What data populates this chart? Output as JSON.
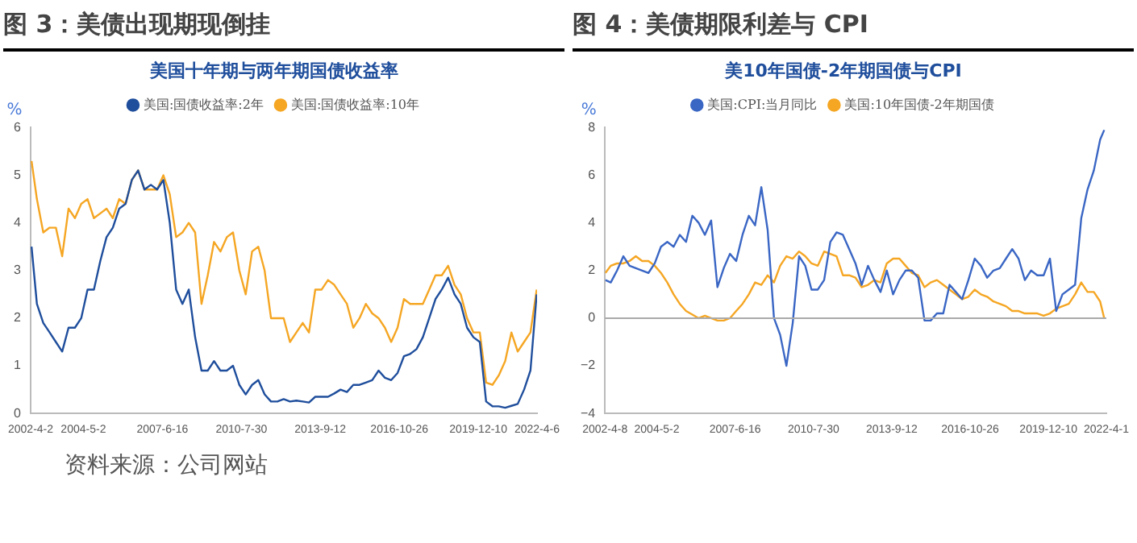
{
  "chart_data": [
    {
      "type": "line",
      "title": "图 3：美债出现期现倒挂",
      "subtitle": "美国十年期与两年期国债收益率",
      "ylabel": "%",
      "legend": "top",
      "marker": "none",
      "line_style": "solid",
      "grid": false,
      "x": [
        "2002-04-15",
        "2002-07",
        "2002-10",
        "2003-01",
        "2003-04",
        "2003-07",
        "2003-10",
        "2004-01",
        "2004-04",
        "2004-07",
        "2004-10",
        "2005-01",
        "2005-04",
        "2005-07",
        "2005-10",
        "2006-01",
        "2006-04",
        "2006-07",
        "2006-10",
        "2007-01",
        "2007-04",
        "2007-07",
        "2007-10",
        "2008-01",
        "2008-04",
        "2008-07",
        "2008-10",
        "2009-01",
        "2009-04",
        "2009-07",
        "2009-10",
        "2010-01",
        "2010-04",
        "2010-07",
        "2010-10",
        "2011-01",
        "2011-04",
        "2011-07",
        "2011-10",
        "2012-01",
        "2012-04",
        "2012-07",
        "2012-10",
        "2013-01",
        "2013-04",
        "2013-07",
        "2013-10",
        "2014-01",
        "2014-04",
        "2014-07",
        "2014-10",
        "2015-01",
        "2015-04",
        "2015-07",
        "2015-10",
        "2016-01",
        "2016-04",
        "2016-07",
        "2016-10",
        "2017-01",
        "2017-04",
        "2017-07",
        "2017-10",
        "2018-01",
        "2018-04",
        "2018-07",
        "2018-10",
        "2019-01",
        "2019-04",
        "2019-07",
        "2019-10",
        "2020-01",
        "2020-04",
        "2020-07",
        "2020-10",
        "2021-01",
        "2021-04",
        "2021-07",
        "2021-10",
        "2022-01",
        "2022-04"
      ],
      "xlim": [
        "2002-04-02",
        "2022-04-06"
      ],
      "xticks": [
        {
          "value": "2002-04-02",
          "label": "2002-4-2"
        },
        {
          "value": "2004-05-02",
          "label": "2004-5-2"
        },
        {
          "value": "2007-06-16",
          "label": "2007-6-16"
        },
        {
          "value": "2010-07-30",
          "label": "2010-7-30"
        },
        {
          "value": "2013-09-12",
          "label": "2013-9-12"
        },
        {
          "value": "2016-10-26",
          "label": "2016-10-26"
        },
        {
          "value": "2019-12-10",
          "label": "2019-12-10"
        },
        {
          "value": "2022-04-06",
          "label": "2022-4-6"
        }
      ],
      "ylim": [
        0,
        6
      ],
      "yticks": [
        0,
        1,
        2,
        3,
        4,
        5,
        6
      ],
      "series": [
        {
          "name": "美国:国债收益率:2年",
          "color": "#1f4e9c",
          "values": [
            3.5,
            2.3,
            1.9,
            1.7,
            1.5,
            1.3,
            1.8,
            1.8,
            2.0,
            2.6,
            2.6,
            3.2,
            3.7,
            3.9,
            4.3,
            4.4,
            4.9,
            5.1,
            4.7,
            4.8,
            4.7,
            4.9,
            4.0,
            2.6,
            2.3,
            2.6,
            1.6,
            0.9,
            0.9,
            1.1,
            0.9,
            0.9,
            1.0,
            0.6,
            0.4,
            0.6,
            0.7,
            0.4,
            0.25,
            0.25,
            0.3,
            0.25,
            0.27,
            0.25,
            0.23,
            0.35,
            0.35,
            0.35,
            0.42,
            0.5,
            0.45,
            0.6,
            0.6,
            0.65,
            0.7,
            0.9,
            0.75,
            0.7,
            0.85,
            1.2,
            1.25,
            1.35,
            1.6,
            2.0,
            2.4,
            2.6,
            2.85,
            2.5,
            2.3,
            1.8,
            1.6,
            1.5,
            0.25,
            0.15,
            0.15,
            0.12,
            0.16,
            0.2,
            0.5,
            0.9,
            2.5
          ]
        },
        {
          "name": "美国:国债收益率:10年",
          "color": "#f5a623",
          "values": [
            5.3,
            4.5,
            3.8,
            3.9,
            3.9,
            3.3,
            4.3,
            4.1,
            4.4,
            4.5,
            4.1,
            4.2,
            4.3,
            4.1,
            4.5,
            4.4,
            4.9,
            5.1,
            4.7,
            4.7,
            4.7,
            5.0,
            4.6,
            3.7,
            3.8,
            4.0,
            3.8,
            2.3,
            2.9,
            3.6,
            3.4,
            3.7,
            3.8,
            3.0,
            2.5,
            3.4,
            3.5,
            3.0,
            2.0,
            2.0,
            2.0,
            1.5,
            1.7,
            1.9,
            1.7,
            2.6,
            2.6,
            2.8,
            2.7,
            2.5,
            2.3,
            1.8,
            2.0,
            2.3,
            2.1,
            2.0,
            1.8,
            1.5,
            1.8,
            2.4,
            2.3,
            2.3,
            2.3,
            2.6,
            2.9,
            2.9,
            3.1,
            2.7,
            2.5,
            2.0,
            1.7,
            1.7,
            0.65,
            0.6,
            0.8,
            1.1,
            1.7,
            1.3,
            1.5,
            1.7,
            2.6
          ]
        }
      ],
      "annotations": [
        "资料来源：公司网站"
      ]
    },
    {
      "type": "line",
      "title": "图 4：美债期限利差与 CPI",
      "subtitle": "美10年国债-2年期国债与CPI",
      "ylabel": "%",
      "legend": "top",
      "marker": "none",
      "line_style": "solid",
      "grid": false,
      "x": [
        "2002-04-15",
        "2002-07",
        "2002-10",
        "2003-01",
        "2003-04",
        "2003-07",
        "2003-10",
        "2004-01",
        "2004-04",
        "2004-07",
        "2004-10",
        "2005-01",
        "2005-04",
        "2005-07",
        "2005-10",
        "2006-01",
        "2006-04",
        "2006-07",
        "2006-10",
        "2007-01",
        "2007-04",
        "2007-07",
        "2007-10",
        "2008-01",
        "2008-04",
        "2008-07",
        "2008-10",
        "2009-01",
        "2009-04",
        "2009-07",
        "2009-10",
        "2010-01",
        "2010-04",
        "2010-07",
        "2010-10",
        "2011-01",
        "2011-04",
        "2011-07",
        "2011-10",
        "2012-01",
        "2012-04",
        "2012-07",
        "2012-10",
        "2013-01",
        "2013-04",
        "2013-07",
        "2013-10",
        "2014-01",
        "2014-04",
        "2014-07",
        "2014-10",
        "2015-01",
        "2015-04",
        "2015-07",
        "2015-10",
        "2016-01",
        "2016-04",
        "2016-07",
        "2016-10",
        "2017-01",
        "2017-04",
        "2017-07",
        "2017-10",
        "2018-01",
        "2018-04",
        "2018-07",
        "2018-10",
        "2019-01",
        "2019-04",
        "2019-07",
        "2019-10",
        "2020-01",
        "2020-04",
        "2020-07",
        "2020-10",
        "2021-01",
        "2021-04",
        "2021-07",
        "2021-10",
        "2022-01",
        "2022-03"
      ],
      "xlim": [
        "2002-04-08",
        "2022-04-01"
      ],
      "xticks": [
        {
          "value": "2002-04-08",
          "label": "2002-4-8"
        },
        {
          "value": "2004-05-02",
          "label": "2004-5-2"
        },
        {
          "value": "2007-06-16",
          "label": "2007-6-16"
        },
        {
          "value": "2010-07-30",
          "label": "2010-7-30"
        },
        {
          "value": "2013-09-12",
          "label": "2013-9-12"
        },
        {
          "value": "2016-10-26",
          "label": "2016-10-26"
        },
        {
          "value": "2019-12-10",
          "label": "2019-12-10"
        },
        {
          "value": "2022-04-01",
          "label": "2022-4-1"
        }
      ],
      "ylim": [
        -4,
        8
      ],
      "yticks": [
        -4,
        -2,
        0,
        2,
        4,
        6,
        8
      ],
      "ref_lines": [
        {
          "axis": "y",
          "value": 0,
          "color": "#aaaaaa"
        }
      ],
      "series": [
        {
          "name": "美国:CPI:当月同比",
          "color": "#3a66c4",
          "values": [
            1.6,
            1.5,
            2.0,
            2.6,
            2.2,
            2.1,
            2.0,
            1.9,
            2.3,
            3.0,
            3.2,
            3.0,
            3.5,
            3.2,
            4.3,
            4.0,
            3.5,
            4.1,
            1.3,
            2.1,
            2.7,
            2.4,
            3.5,
            4.3,
            3.9,
            5.5,
            3.7,
            0.0,
            -0.7,
            -2.0,
            -0.2,
            2.6,
            2.2,
            1.2,
            1.2,
            1.6,
            3.2,
            3.6,
            3.5,
            2.9,
            2.3,
            1.4,
            2.2,
            1.6,
            1.1,
            2.0,
            1.0,
            1.6,
            2.0,
            2.0,
            1.7,
            -0.1,
            -0.1,
            0.2,
            0.2,
            1.4,
            1.1,
            0.8,
            1.6,
            2.5,
            2.2,
            1.7,
            2.0,
            2.1,
            2.5,
            2.9,
            2.5,
            1.6,
            2.0,
            1.8,
            1.8,
            2.5,
            0.3,
            1.0,
            1.2,
            1.4,
            4.2,
            5.4,
            6.2,
            7.5,
            7.9
          ]
        },
        {
          "name": "美国:10年国债-2年期国债",
          "color": "#f5a623",
          "values": [
            1.9,
            2.2,
            2.3,
            2.3,
            2.4,
            2.6,
            2.4,
            2.4,
            2.2,
            1.9,
            1.5,
            1.0,
            0.6,
            0.3,
            0.15,
            0.0,
            0.1,
            0.0,
            -0.1,
            -0.1,
            0.0,
            0.3,
            0.6,
            1.0,
            1.5,
            1.4,
            1.8,
            1.5,
            2.2,
            2.6,
            2.5,
            2.8,
            2.6,
            2.3,
            2.2,
            2.8,
            2.7,
            2.6,
            1.8,
            1.8,
            1.7,
            1.3,
            1.4,
            1.6,
            1.5,
            2.3,
            2.5,
            2.5,
            2.2,
            1.9,
            1.8,
            1.3,
            1.5,
            1.6,
            1.4,
            1.2,
            1.0,
            0.8,
            0.9,
            1.2,
            1.0,
            0.9,
            0.7,
            0.6,
            0.5,
            0.3,
            0.3,
            0.2,
            0.2,
            0.2,
            0.1,
            0.2,
            0.4,
            0.5,
            0.6,
            1.0,
            1.5,
            1.1,
            1.1,
            0.7,
            0.0
          ]
        }
      ]
    }
  ]
}
